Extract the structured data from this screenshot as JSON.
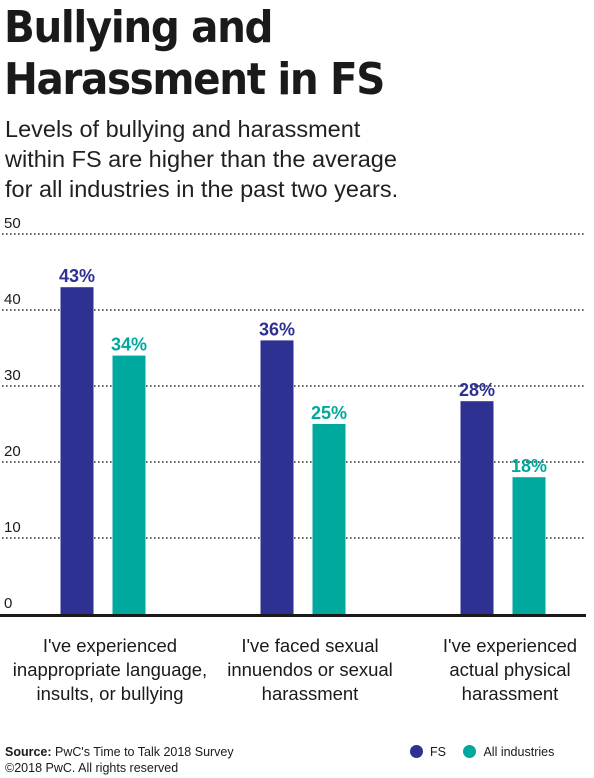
{
  "header": {
    "title_lines": [
      "Bullying and",
      "Harassment in FS"
    ],
    "subtitle_lines": [
      "Levels of bullying and harassment",
      "within FS are higher than the average",
      "for all industries in the past two years."
    ]
  },
  "chart_data": {
    "type": "bar",
    "title": "Bullying and Harassment in FS",
    "categories": [
      [
        "I've experienced",
        "inappropriate language,",
        "insults, or bullying"
      ],
      [
        "I've faced sexual",
        "innuendos or sexual",
        "harassment"
      ],
      [
        "I've experienced",
        "actual physical",
        "harassment"
      ]
    ],
    "series": [
      {
        "name": "FS",
        "values": [
          43,
          36,
          28
        ],
        "labels": [
          "43%",
          "36%",
          "28%"
        ],
        "color": "#2e3192"
      },
      {
        "name": "All industries",
        "values": [
          34,
          25,
          18
        ],
        "labels": [
          "34%",
          "25%",
          "18%"
        ],
        "color": "#00a99d"
      }
    ],
    "ylim": [
      0,
      50
    ],
    "yticks": [
      0,
      10,
      20,
      30,
      40,
      50
    ],
    "grid": "dotted",
    "legend_position": "bottom-right"
  },
  "footer": {
    "source_label": "Source:",
    "source_text": " PwC's Time to Talk 2018 Survey",
    "copyright": "©2018 PwC. All rights reserved"
  }
}
